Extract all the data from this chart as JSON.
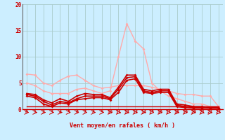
{
  "background_color": "#cceeff",
  "grid_color": "#aacccc",
  "xlabel": "Vent moyen/en rafales ( km/h )",
  "xlabel_color": "#cc0000",
  "tick_color": "#cc0000",
  "xlim": [
    -0.5,
    23.5
  ],
  "ylim": [
    0,
    20
  ],
  "yticks": [
    0,
    5,
    10,
    15,
    20
  ],
  "xticks": [
    0,
    1,
    2,
    3,
    4,
    5,
    6,
    7,
    8,
    9,
    10,
    11,
    12,
    13,
    14,
    15,
    16,
    17,
    18,
    19,
    20,
    21,
    22,
    23
  ],
  "series": [
    {
      "x": [
        0,
        1,
        2,
        3,
        4,
        5,
        6,
        7,
        8,
        9,
        10,
        11,
        12,
        13,
        14,
        15,
        16,
        17,
        18,
        19,
        20,
        21,
        22,
        23
      ],
      "y": [
        6.7,
        6.5,
        5.0,
        4.5,
        5.5,
        6.3,
        6.5,
        5.5,
        4.5,
        4.0,
        4.2,
        4.5,
        4.5,
        4.5,
        4.5,
        4.2,
        3.8,
        3.5,
        3.0,
        2.8,
        2.8,
        2.5,
        2.5,
        0.5
      ],
      "color": "#ffaaaa",
      "lw": 1.0,
      "marker": "D",
      "ms": 2.0
    },
    {
      "x": [
        0,
        1,
        2,
        3,
        4,
        5,
        6,
        7,
        8,
        9,
        10,
        11,
        12,
        13,
        14,
        15,
        16,
        17,
        18,
        19,
        20,
        21,
        22,
        23
      ],
      "y": [
        5.0,
        4.5,
        3.5,
        3.0,
        3.0,
        3.0,
        3.8,
        4.0,
        3.5,
        3.0,
        3.5,
        10.0,
        16.3,
        13.0,
        11.5,
        5.0,
        3.5,
        2.5,
        2.0,
        1.5,
        1.0,
        1.0,
        0.5,
        0.5
      ],
      "color": "#ffaaaa",
      "lw": 1.0,
      "marker": "D",
      "ms": 2.0
    },
    {
      "x": [
        0,
        1,
        2,
        3,
        4,
        5,
        6,
        7,
        8,
        9,
        10,
        11,
        12,
        13,
        14,
        15,
        16,
        17,
        18,
        19,
        20,
        21,
        22,
        23
      ],
      "y": [
        3.0,
        2.8,
        1.8,
        1.2,
        2.0,
        1.5,
        2.5,
        3.0,
        2.8,
        2.8,
        2.2,
        4.2,
        6.5,
        6.5,
        3.8,
        3.5,
        3.8,
        3.8,
        1.0,
        0.8,
        0.5,
        0.5,
        0.3,
        0.3
      ],
      "color": "#cc0000",
      "lw": 1.2,
      "marker": "D",
      "ms": 2.0
    },
    {
      "x": [
        0,
        1,
        2,
        3,
        4,
        5,
        6,
        7,
        8,
        9,
        10,
        11,
        12,
        13,
        14,
        15,
        16,
        17,
        18,
        19,
        20,
        21,
        22,
        23
      ],
      "y": [
        2.8,
        2.5,
        1.5,
        0.8,
        1.5,
        1.2,
        2.0,
        2.5,
        2.5,
        2.5,
        2.0,
        3.8,
        6.0,
        6.2,
        3.5,
        3.2,
        3.5,
        3.5,
        0.8,
        0.5,
        0.3,
        0.3,
        0.2,
        0.2
      ],
      "color": "#cc0000",
      "lw": 1.2,
      "marker": "D",
      "ms": 2.0
    },
    {
      "x": [
        0,
        1,
        2,
        3,
        4,
        5,
        6,
        7,
        8,
        9,
        10,
        11,
        12,
        13,
        14,
        15,
        16,
        17,
        18,
        19,
        20,
        21,
        22,
        23
      ],
      "y": [
        2.5,
        2.2,
        1.0,
        0.5,
        1.2,
        1.0,
        1.8,
        2.0,
        2.2,
        2.2,
        1.8,
        3.2,
        5.5,
        5.8,
        3.2,
        3.0,
        3.2,
        3.2,
        0.5,
        0.3,
        0.2,
        0.2,
        0.2,
        0.2
      ],
      "color": "#cc0000",
      "lw": 1.2,
      "marker": "D",
      "ms": 2.0
    },
    {
      "x": [
        0,
        1,
        2,
        3,
        4,
        5,
        6,
        7,
        8,
        9,
        10,
        11,
        12,
        13,
        14,
        15,
        16,
        17,
        18,
        19,
        20,
        21,
        22,
        23
      ],
      "y": [
        0.5,
        0.5,
        0.5,
        0.5,
        0.5,
        0.5,
        0.5,
        0.5,
        0.5,
        0.5,
        0.5,
        0.5,
        0.5,
        0.5,
        0.5,
        0.5,
        0.5,
        0.5,
        0.5,
        0.5,
        0.5,
        0.5,
        0.5,
        0.5
      ],
      "color": "#cc0000",
      "lw": 1.0,
      "marker": "4",
      "ms": 4.0
    }
  ]
}
